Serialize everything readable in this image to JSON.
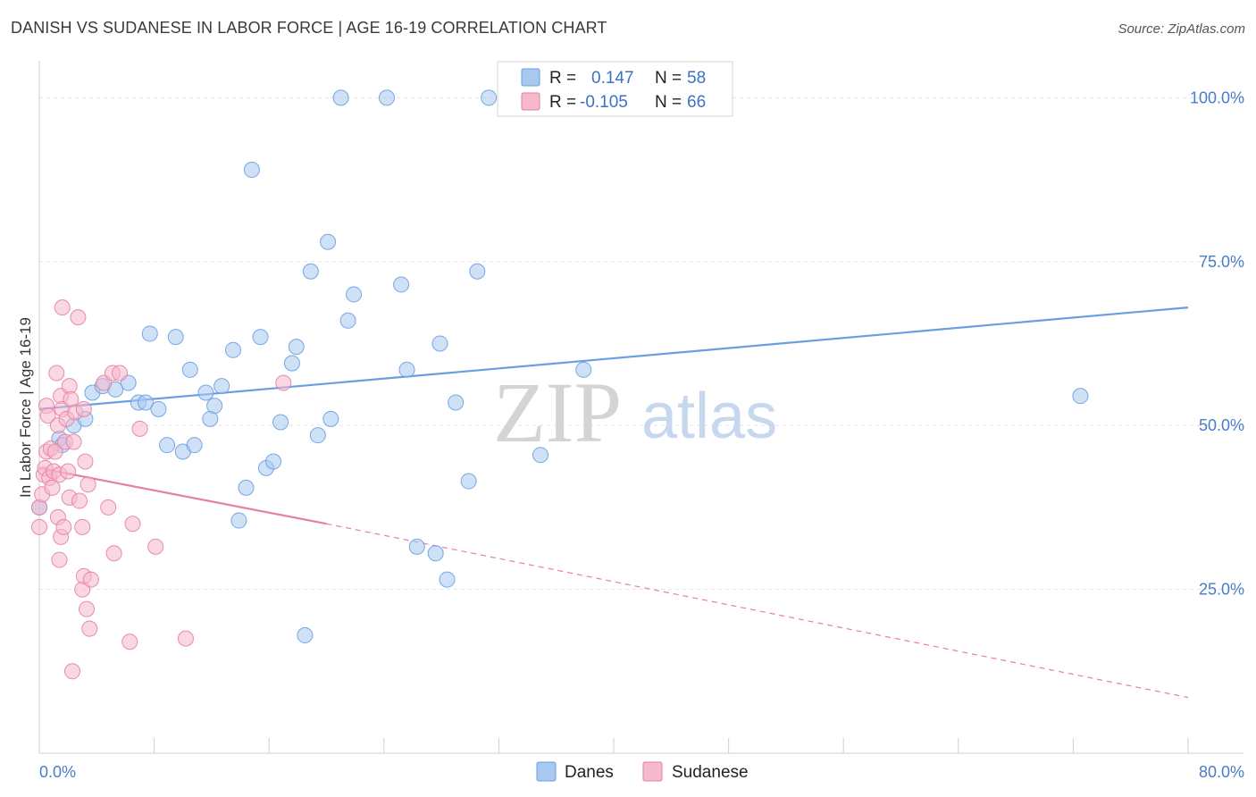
{
  "title": "DANISH VS SUDANESE IN LABOR FORCE | AGE 16-19 CORRELATION CHART",
  "source": "Source: ZipAtlas.com",
  "watermark": {
    "zip": "ZIP",
    "atlas": "atlas"
  },
  "legend_top": {
    "rows": [
      {
        "r_label": "R =",
        "r_value": "0.147",
        "n_label": "N =",
        "n_value": "58",
        "color": "#a8c8f0"
      },
      {
        "r_label": "R =",
        "r_value": "-0.105",
        "n_label": "N =",
        "n_value": "66",
        "color": "#f6b8cc"
      }
    ]
  },
  "legend_bottom": {
    "items": [
      {
        "label": "Danes",
        "color": "#a8c8f0"
      },
      {
        "label": "Sudanese",
        "color": "#f6b8cc"
      }
    ]
  },
  "chart_data": {
    "type": "scatter",
    "xlabel": "",
    "ylabel": "In Labor Force | Age 16-19",
    "xlim": [
      0,
      80
    ],
    "ylim": [
      0,
      104
    ],
    "x_tick_labels": [
      {
        "value": 0,
        "label": "0.0%"
      },
      {
        "value": 80,
        "label": "80.0%"
      }
    ],
    "y_tick_labels": [
      {
        "value": 25,
        "label": "25.0%"
      },
      {
        "value": 50,
        "label": "50.0%"
      },
      {
        "value": 75,
        "label": "75.0%"
      },
      {
        "value": 100,
        "label": "100.0%"
      }
    ],
    "grid": true,
    "legend_position": "top-center",
    "series": [
      {
        "name": "Danes",
        "color": "#6a9ee0",
        "fill": "#a8c8f0",
        "trend": {
          "x0": 0,
          "y0": 52.5,
          "x1": 80,
          "y1": 68.0
        },
        "points": [
          [
            0,
            37.5
          ],
          [
            1.4,
            48
          ],
          [
            1.6,
            47
          ],
          [
            2.4,
            50
          ],
          [
            3.2,
            51
          ],
          [
            3.7,
            55
          ],
          [
            4.4,
            56
          ],
          [
            5.3,
            55.5
          ],
          [
            6.2,
            56.5
          ],
          [
            6.9,
            53.5
          ],
          [
            7.4,
            53.5
          ],
          [
            7.7,
            64
          ],
          [
            8.3,
            52.5
          ],
          [
            8.9,
            47
          ],
          [
            9.5,
            63.5
          ],
          [
            10.0,
            46
          ],
          [
            10.5,
            58.5
          ],
          [
            10.8,
            47
          ],
          [
            11.6,
            55
          ],
          [
            11.9,
            51
          ],
          [
            12.2,
            53
          ],
          [
            12.7,
            56
          ],
          [
            13.5,
            61.5
          ],
          [
            13.9,
            35.5
          ],
          [
            14.4,
            40.5
          ],
          [
            14.8,
            89
          ],
          [
            15.4,
            63.5
          ],
          [
            15.8,
            43.5
          ],
          [
            16.3,
            44.5
          ],
          [
            16.8,
            50.5
          ],
          [
            17.6,
            59.5
          ],
          [
            17.9,
            62
          ],
          [
            18.5,
            18
          ],
          [
            18.9,
            73.5
          ],
          [
            19.4,
            48.5
          ],
          [
            20.1,
            78
          ],
          [
            20.3,
            51
          ],
          [
            21.0,
            100
          ],
          [
            21.5,
            66
          ],
          [
            21.9,
            70
          ],
          [
            24.2,
            100
          ],
          [
            25.2,
            71.5
          ],
          [
            25.6,
            58.5
          ],
          [
            26.3,
            31.5
          ],
          [
            27.6,
            30.5
          ],
          [
            27.9,
            62.5
          ],
          [
            28.4,
            26.5
          ],
          [
            29.0,
            53.5
          ],
          [
            29.9,
            41.5
          ],
          [
            30.5,
            73.5
          ],
          [
            31.3,
            100
          ],
          [
            34.9,
            45.5
          ],
          [
            37.9,
            58.5
          ],
          [
            72.5,
            54.5
          ]
        ]
      },
      {
        "name": "Sudanese",
        "color": "#e77fa2",
        "fill": "#f6b8cc",
        "trend": {
          "x0": 0,
          "y0": 43.5,
          "x1": 20.0,
          "y1": 35.0,
          "dash_x1": 80,
          "dash_y1": 8.5
        },
        "points": [
          [
            0,
            34.5
          ],
          [
            0,
            37.5
          ],
          [
            0.2,
            39.5
          ],
          [
            0.3,
            42.5
          ],
          [
            0.4,
            43.5
          ],
          [
            0.5,
            46
          ],
          [
            0.5,
            53
          ],
          [
            0.6,
            51.5
          ],
          [
            0.7,
            42
          ],
          [
            0.8,
            46.5
          ],
          [
            0.9,
            40.5
          ],
          [
            1.0,
            43
          ],
          [
            1.1,
            46
          ],
          [
            1.2,
            58
          ],
          [
            1.3,
            50
          ],
          [
            1.3,
            36
          ],
          [
            1.4,
            42.5
          ],
          [
            1.4,
            29.5
          ],
          [
            1.5,
            54.5
          ],
          [
            1.5,
            33
          ],
          [
            1.6,
            52.5
          ],
          [
            1.6,
            68
          ],
          [
            1.7,
            34.5
          ],
          [
            1.8,
            47.5
          ],
          [
            1.9,
            51
          ],
          [
            2.0,
            43
          ],
          [
            2.1,
            56
          ],
          [
            2.1,
            39
          ],
          [
            2.2,
            54
          ],
          [
            2.3,
            12.5
          ],
          [
            2.4,
            47.5
          ],
          [
            2.5,
            52
          ],
          [
            2.7,
            66.5
          ],
          [
            2.8,
            38.5
          ],
          [
            3.0,
            25
          ],
          [
            3.0,
            34.5
          ],
          [
            3.1,
            27
          ],
          [
            3.1,
            52.5
          ],
          [
            3.2,
            44.5
          ],
          [
            3.3,
            22
          ],
          [
            3.4,
            41
          ],
          [
            3.5,
            19
          ],
          [
            3.6,
            26.5
          ],
          [
            4.5,
            56.5
          ],
          [
            4.8,
            37.5
          ],
          [
            5.1,
            58
          ],
          [
            5.2,
            30.5
          ],
          [
            5.6,
            58
          ],
          [
            6.3,
            17
          ],
          [
            6.5,
            35
          ],
          [
            7.0,
            49.5
          ],
          [
            8.1,
            31.5
          ],
          [
            10.2,
            17.5
          ],
          [
            17.0,
            56.5
          ]
        ]
      }
    ]
  }
}
